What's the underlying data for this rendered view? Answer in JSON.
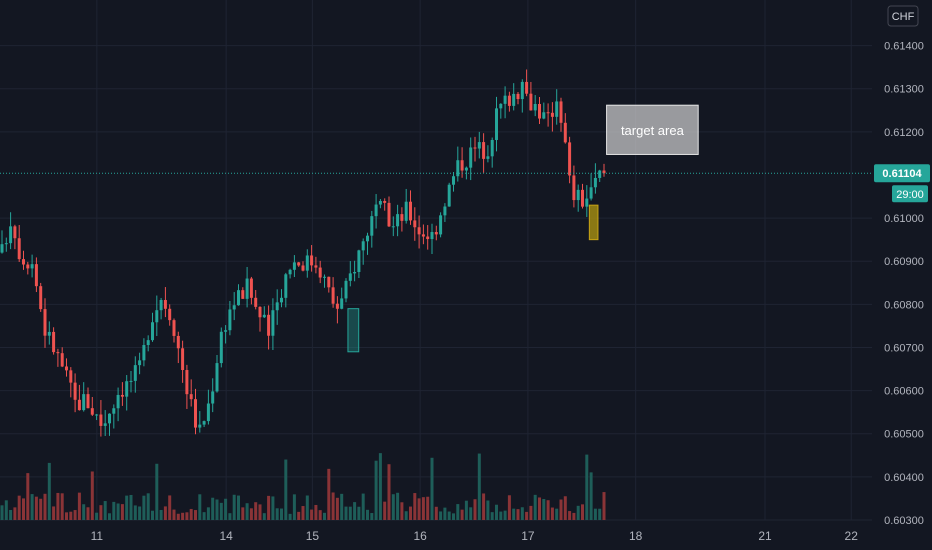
{
  "currency_label": "CHF",
  "colors": {
    "background": "#131722",
    "grid": "#1f2433",
    "up": "#26a69a",
    "down": "#ef5350",
    "up_volume": "#1e5e59",
    "down_volume": "#8a3437",
    "axis_text": "#b2b5be",
    "last_price_badge": "#26a69a",
    "zone_teal": "#26a69a",
    "zone_olive": "#a08a12",
    "target_box": "#d9d9d9"
  },
  "chart_data": {
    "type": "candlestick",
    "y_axis_position": "right",
    "ylim": [
      0.603,
      0.6145
    ],
    "y_ticks": [
      "0.61400",
      "0.61300",
      "0.61200",
      "0.61000",
      "0.60900",
      "0.60800",
      "0.60700",
      "0.60600",
      "0.60500",
      "0.60400",
      "0.60300"
    ],
    "x_ticks": [
      {
        "label": "11",
        "pos": 11.0
      },
      {
        "label": "14",
        "pos": 12.2
      },
      {
        "label": "15",
        "pos": 13.0
      },
      {
        "label": "16",
        "pos": 14.0
      },
      {
        "label": "17",
        "pos": 15.0
      },
      {
        "label": "18",
        "pos": 16.0
      },
      {
        "label": "21",
        "pos": 17.2
      },
      {
        "label": "22",
        "pos": 18.0
      }
    ],
    "x_range": [
      10.12,
      18.1
    ],
    "last_price": "0.61104",
    "last_price_value": 0.61104,
    "countdown": "29:00",
    "anchors": [
      [
        10.12,
        0.6092
      ],
      [
        10.2,
        0.61
      ],
      [
        10.3,
        0.6091
      ],
      [
        10.4,
        0.609
      ],
      [
        10.52,
        0.6074
      ],
      [
        10.6,
        0.607
      ],
      [
        10.72,
        0.6063
      ],
      [
        10.8,
        0.6057
      ],
      [
        10.9,
        0.6058
      ],
      [
        11.05,
        0.6052
      ],
      [
        11.2,
        0.606
      ],
      [
        11.3,
        0.6062
      ],
      [
        11.4,
        0.6065
      ],
      [
        11.5,
        0.6077
      ],
      [
        11.6,
        0.6082
      ],
      [
        11.7,
        0.6077
      ],
      [
        11.78,
        0.6067
      ],
      [
        11.87,
        0.6057
      ],
      [
        11.95,
        0.605
      ],
      [
        12.05,
        0.6058
      ],
      [
        12.15,
        0.6073
      ],
      [
        12.25,
        0.608
      ],
      [
        12.4,
        0.6084
      ],
      [
        12.5,
        0.6078
      ],
      [
        12.6,
        0.6073
      ],
      [
        12.7,
        0.6083
      ],
      [
        12.8,
        0.609
      ],
      [
        12.92,
        0.609
      ],
      [
        13.05,
        0.609
      ],
      [
        13.18,
        0.6081
      ],
      [
        13.25,
        0.6079
      ],
      [
        13.4,
        0.609
      ],
      [
        13.55,
        0.61
      ],
      [
        13.65,
        0.6102
      ],
      [
        13.75,
        0.6098
      ],
      [
        13.88,
        0.6102
      ],
      [
        14.0,
        0.6097
      ],
      [
        14.12,
        0.6096
      ],
      [
        14.22,
        0.6104
      ],
      [
        14.35,
        0.6112
      ],
      [
        14.5,
        0.6116
      ],
      [
        14.62,
        0.6116
      ],
      [
        14.72,
        0.6125
      ],
      [
        14.82,
        0.6128
      ],
      [
        14.92,
        0.613
      ],
      [
        15.0,
        0.6128
      ],
      [
        15.08,
        0.6126
      ],
      [
        15.18,
        0.6122
      ],
      [
        15.28,
        0.6129
      ],
      [
        15.33,
        0.612
      ],
      [
        15.4,
        0.6106
      ],
      [
        15.5,
        0.6104
      ],
      [
        15.6,
        0.6106
      ],
      [
        15.65,
        0.611
      ]
    ],
    "volume_scale": [
      0,
      0.12
    ],
    "zones": [
      {
        "name": "teal-zone",
        "x0": 13.33,
        "x1": 13.43,
        "y0": 0.6069,
        "y1": 0.6079
      },
      {
        "name": "olive-zone",
        "x0": 15.57,
        "x1": 15.65,
        "y0": 0.6095,
        "y1": 0.6103
      }
    ],
    "annotation": {
      "text": "target area",
      "x0": 15.73,
      "x1": 16.58,
      "y0": 0.6118,
      "y1": 0.6122
    }
  }
}
